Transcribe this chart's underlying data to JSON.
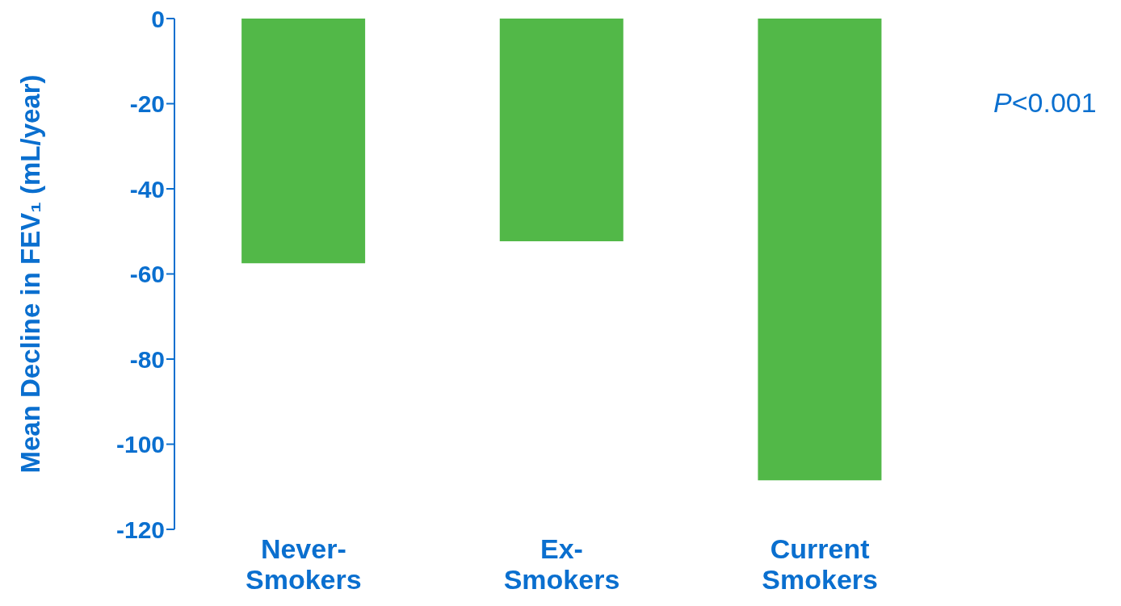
{
  "chart_data": {
    "type": "bar",
    "categories": [
      "Never-Smokers",
      "Ex-Smokers",
      "Current Smokers"
    ],
    "values": [
      -57.5,
      -52.3,
      -108.5
    ],
    "color": "#52b848",
    "ylabel": "Mean Decline in FEV₁ (mL/year)",
    "ylim": [
      -120,
      0
    ],
    "yticks": [
      -120,
      -100,
      -80,
      -60,
      -40,
      -20,
      0
    ],
    "annotations": [
      "P<0.001"
    ],
    "grid": false,
    "legend": false
  }
}
